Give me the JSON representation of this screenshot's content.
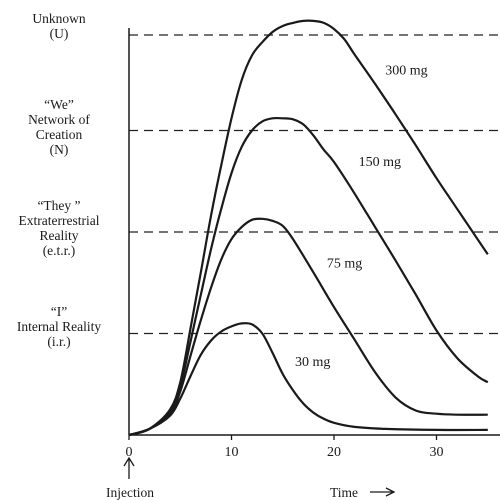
{
  "chart_data": {
    "type": "line",
    "title": "",
    "xlabel": "Time",
    "ylabel": "",
    "xlim": [
      0,
      35
    ],
    "ylim": [
      0,
      4
    ],
    "x_ticks": [
      0,
      10,
      20,
      30
    ],
    "x_tick_labels": [
      "0",
      "10",
      "20",
      "30"
    ],
    "start_marker_label": "Injection",
    "levels": [
      {
        "name": "I",
        "value": 1,
        "lines": [
          "“I”",
          "Internal Reality",
          "(i.r.)"
        ]
      },
      {
        "name": "They",
        "value": 2,
        "lines": [
          "“They ”",
          "Extraterrestrial",
          "Reality",
          "(e.t.r.)"
        ]
      },
      {
        "name": "We",
        "value": 3,
        "lines": [
          "“We”",
          "Network of",
          "Creation",
          "(N)"
        ]
      },
      {
        "name": "Unknown",
        "value": 4,
        "lines": [
          "Unknown",
          "(U)"
        ]
      }
    ],
    "series": [
      {
        "name": "30 mg",
        "x": [
          0,
          2,
          4,
          5,
          6,
          7,
          8,
          9,
          10,
          11,
          12,
          13,
          14,
          15,
          16,
          17,
          18,
          19,
          20,
          22,
          25,
          30,
          35
        ],
        "y": [
          0,
          0.06,
          0.19,
          0.36,
          0.58,
          0.79,
          0.93,
          1.02,
          1.07,
          1.1,
          1.09,
          1.0,
          0.81,
          0.6,
          0.44,
          0.31,
          0.22,
          0.16,
          0.12,
          0.08,
          0.06,
          0.05,
          0.05
        ]
      },
      {
        "name": "75 mg",
        "x": [
          0,
          2,
          4,
          5,
          6,
          7,
          8,
          9,
          10,
          11,
          12,
          13,
          14,
          15,
          16,
          18,
          20,
          22,
          24,
          26,
          28,
          30,
          32,
          35
        ],
        "y": [
          0,
          0.06,
          0.21,
          0.43,
          0.78,
          1.13,
          1.45,
          1.73,
          1.93,
          2.05,
          2.12,
          2.13,
          2.11,
          2.06,
          1.93,
          1.6,
          1.26,
          0.94,
          0.62,
          0.37,
          0.24,
          0.21,
          0.2,
          0.2
        ]
      },
      {
        "name": "150 mg",
        "x": [
          0,
          2,
          4,
          5,
          6,
          7,
          8,
          9,
          10,
          11,
          12,
          13,
          14,
          15,
          16,
          17,
          18,
          19,
          20,
          22,
          24,
          26,
          28,
          30,
          32,
          34,
          35
        ],
        "y": [
          0,
          0.06,
          0.23,
          0.48,
          0.92,
          1.38,
          1.83,
          2.23,
          2.58,
          2.84,
          3.0,
          3.09,
          3.12,
          3.12,
          3.11,
          3.06,
          2.95,
          2.81,
          2.69,
          2.38,
          2.05,
          1.72,
          1.38,
          1.03,
          0.76,
          0.58,
          0.52
        ]
      },
      {
        "name": "300 mg",
        "x": [
          0,
          2,
          4,
          5,
          6,
          7,
          8,
          9,
          10,
          11,
          12,
          13,
          14,
          15,
          16,
          17,
          18,
          19,
          20,
          21,
          22,
          24,
          26,
          28,
          30,
          32,
          34,
          35
        ],
        "y": [
          0,
          0.06,
          0.25,
          0.52,
          1.05,
          1.6,
          2.16,
          2.66,
          3.12,
          3.5,
          3.74,
          3.87,
          3.97,
          4.03,
          4.06,
          4.08,
          4.08,
          4.06,
          4.0,
          3.9,
          3.75,
          3.46,
          3.16,
          2.85,
          2.53,
          2.23,
          1.93,
          1.78
        ]
      }
    ],
    "grid": "dashed horizontal lines at each level",
    "legend": "labels placed beside each curve"
  }
}
